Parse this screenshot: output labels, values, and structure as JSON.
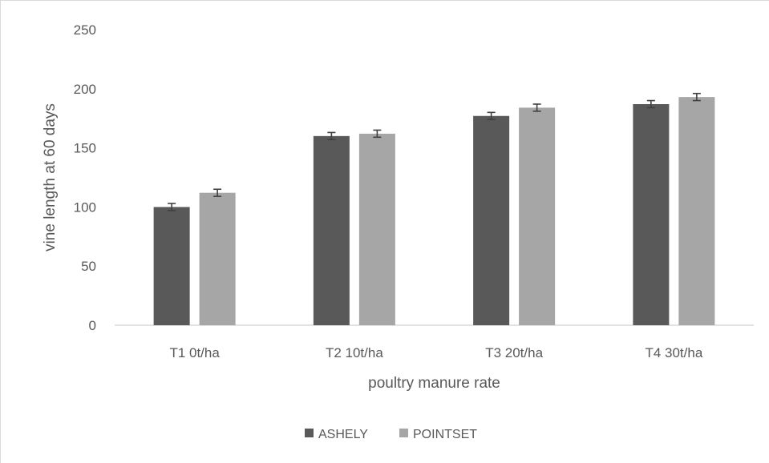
{
  "chart_data": {
    "type": "bar",
    "categories": [
      "T1 0t/ha",
      "T2 10t/ha",
      "T3 20t/ha",
      "T4 30t/ha"
    ],
    "series": [
      {
        "name": "ASHELY",
        "values": [
          100,
          160,
          177,
          187
        ],
        "errors": [
          3,
          3,
          3,
          3
        ],
        "color": "#595959"
      },
      {
        "name": "POINTSET",
        "values": [
          112,
          162,
          184,
          193
        ],
        "errors": [
          3,
          3,
          3,
          3
        ],
        "color": "#a6a6a6"
      }
    ],
    "title": "",
    "xlabel": "poultry manure rate",
    "ylabel": "vine length at 60 days",
    "ylim": [
      0,
      250
    ],
    "yticks": [
      0,
      50,
      100,
      150,
      200,
      250
    ],
    "grid": false,
    "legend_position": "bottom"
  }
}
